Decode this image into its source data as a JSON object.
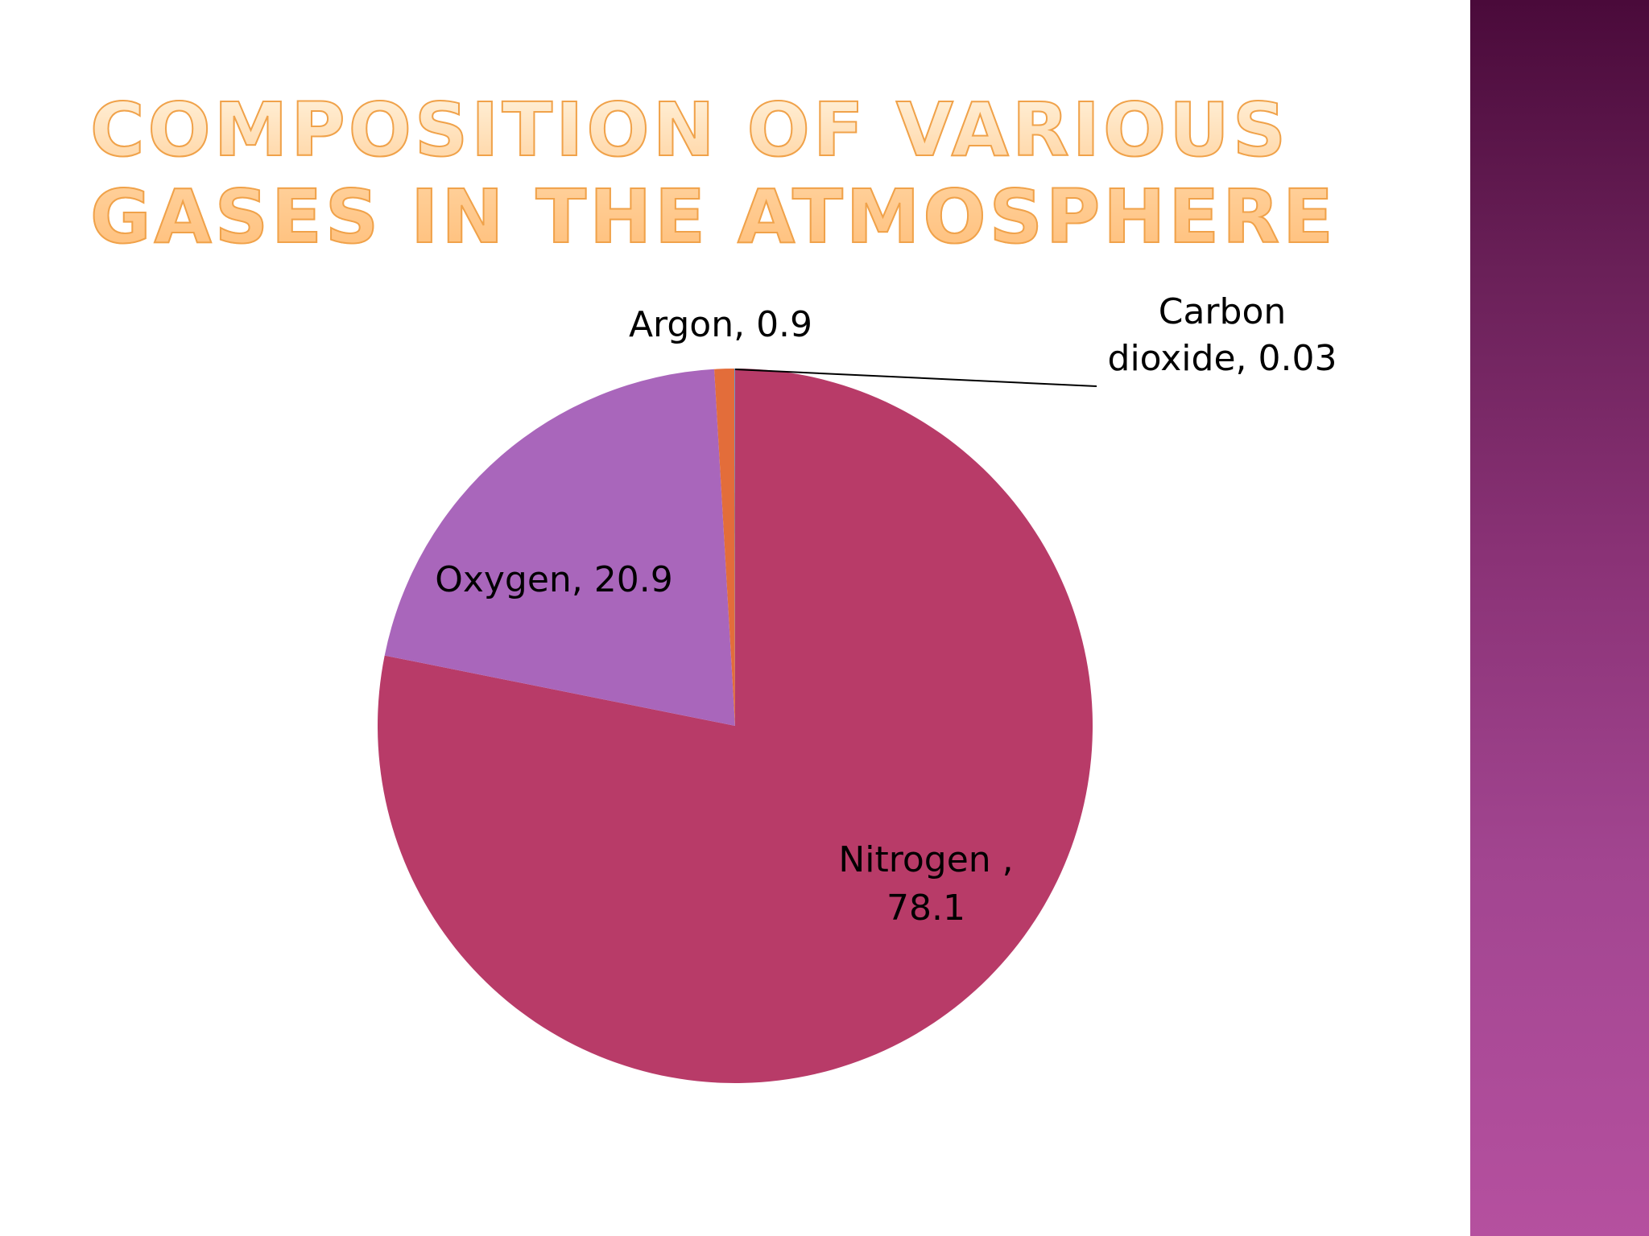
{
  "slide": {
    "title": "Composition of various gases in the atmosphere"
  },
  "chart_data": {
    "type": "pie",
    "title": "",
    "categories": [
      "Nitrogen",
      "Oxygen",
      "Argon",
      "Carbon dioxide"
    ],
    "values": [
      78.1,
      20.9,
      0.9,
      0.03
    ],
    "data_labels": [
      [
        "Nitrogen ,",
        "78.1"
      ],
      [
        "Oxygen, 20.9"
      ],
      [
        "Argon, 0.9"
      ],
      [
        "Carbon",
        "dioxide, 0.03"
      ]
    ],
    "colors": [
      "#b83b68",
      "#a966bb",
      "#e36d3a",
      "#4f8fcf"
    ],
    "legend": "none",
    "start": "12 o'clock",
    "direction": "clockwise"
  },
  "theme": {
    "background": "#ffffff",
    "band_top": "#4a0a3a",
    "band_bottom": "#b5509f",
    "title_color": "#ffc78a"
  }
}
